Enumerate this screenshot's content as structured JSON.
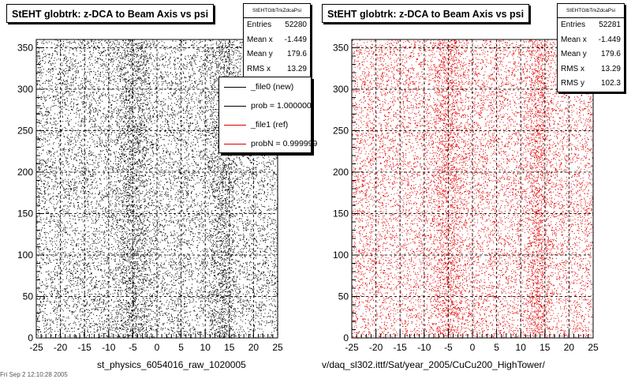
{
  "chart_data": [
    {
      "type": "scatter",
      "title": "StEHT globtrk: z-DCA to Beam Axis vs psi",
      "xlabel": "st_physics_6054016_raw_1020005",
      "ylabel": "",
      "xlim": [
        -25,
        25
      ],
      "ylim": [
        0,
        360
      ],
      "x_ticks": [
        -25,
        -20,
        -15,
        -10,
        -5,
        0,
        5,
        10,
        15,
        20,
        25
      ],
      "y_ticks": [
        0,
        50,
        100,
        150,
        200,
        250,
        300,
        350
      ],
      "grid": true,
      "marker_color": "#000000",
      "stats": {
        "name": "StEHTGlbTrkZdcaPsi",
        "rows": [
          {
            "label": "Entries",
            "value": "52280"
          },
          {
            "label": "Mean x",
            "value": "-1.449"
          },
          {
            "label": "Mean y",
            "value": "179.6"
          },
          {
            "label": "RMS x",
            "value": "13.29"
          }
        ]
      },
      "legend": {
        "placement": "top-right",
        "entries": [
          {
            "label": "_file0 (new)",
            "color": "#000000"
          },
          {
            "label": "prob = 1.000000",
            "color": "#000000"
          },
          {
            "label": "_file1 (ref)",
            "color": "#d40000"
          },
          {
            "label": "probN = 0.999999",
            "color": "#d40000"
          }
        ]
      }
    },
    {
      "type": "scatter",
      "title": "StEHT globtrk: z-DCA to Beam Axis vs psi",
      "xlabel": "v/daq_sl302.ittf/Sat/year_2005/CuCu200_HighTower/",
      "ylabel": "",
      "xlim": [
        -25,
        25
      ],
      "ylim": [
        0,
        360
      ],
      "x_ticks": [
        -25,
        -20,
        -15,
        -10,
        -5,
        0,
        5,
        10,
        15,
        20,
        25
      ],
      "y_ticks": [
        0,
        50,
        100,
        150,
        200,
        250,
        300,
        350
      ],
      "grid": true,
      "marker_color": "#e00000",
      "stats": {
        "name": "StEHTGlbTrkZdcaPsi",
        "rows": [
          {
            "label": "Entries",
            "value": "52281"
          },
          {
            "label": "Mean x",
            "value": "-1.449"
          },
          {
            "label": "Mean y",
            "value": "179.6"
          },
          {
            "label": "RMS x",
            "value": "13.29"
          },
          {
            "label": "RMS y",
            "value": "102.3"
          }
        ]
      }
    }
  ],
  "footer": "Fri Sep  2 12:10:28 2005"
}
